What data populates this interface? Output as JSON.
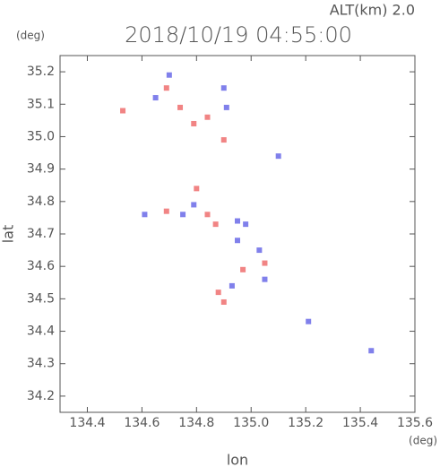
{
  "chart_data": {
    "type": "scatter",
    "title": "2018/10/19 04:55:00",
    "annotation": "ALT(km) 2.0",
    "y_unit": "(deg)",
    "x_unit": "(deg)",
    "x_label": "lon",
    "y_label": "lat",
    "xlim": [
      134.3,
      135.6
    ],
    "ylim": [
      34.15,
      35.25
    ],
    "xticks": [
      134.4,
      134.6,
      134.8,
      {
        "value": 135.0,
        "label": "135.0"
      },
      135.2,
      135.4,
      135.6
    ],
    "yticks": [
      34.2,
      34.3,
      34.4,
      34.5,
      34.6,
      34.7,
      34.8,
      34.9,
      {
        "value": 35.0,
        "label": "35.0"
      },
      35.1,
      35.2
    ],
    "series": [
      {
        "color": "#ee6f6f",
        "x": [
          134.69,
          134.74,
          134.53,
          134.79,
          134.84,
          134.9,
          134.8,
          134.84,
          134.69,
          134.87,
          135.05,
          134.97,
          134.88,
          134.9
        ],
        "y": [
          35.15,
          35.09,
          35.08,
          35.04,
          35.06,
          34.99,
          34.84,
          34.76,
          34.77,
          34.73,
          34.61,
          34.59,
          34.52,
          34.49
        ]
      },
      {
        "color": "#6a6ae8",
        "x": [
          134.7,
          134.65,
          134.9,
          134.91,
          135.1,
          134.79,
          134.61,
          134.75,
          134.95,
          134.98,
          134.95,
          135.03,
          134.93,
          135.05,
          135.21,
          135.44
        ],
        "y": [
          35.19,
          35.12,
          35.15,
          35.09,
          34.94,
          34.79,
          34.76,
          34.76,
          34.74,
          34.73,
          34.68,
          34.65,
          34.54,
          34.56,
          34.43,
          34.34
        ]
      }
    ]
  }
}
